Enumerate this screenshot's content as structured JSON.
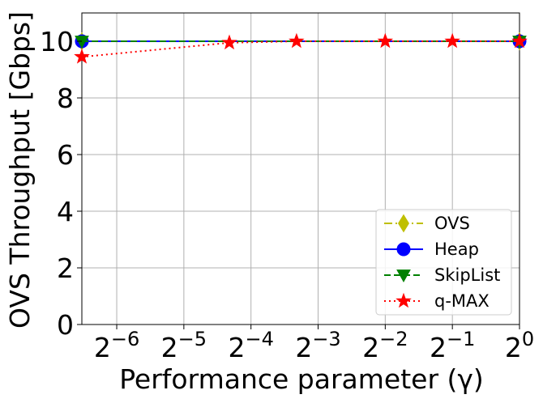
{
  "chart_data": {
    "type": "line",
    "xlabel": "Performance parameter (γ)",
    "ylabel": "OVS Throughput [Gbps]",
    "x_scale": "log2",
    "xlim": [
      0.0109,
      1.0
    ],
    "ylim": [
      0,
      11
    ],
    "x_ticks": [
      {
        "value": 0.015625,
        "base": "2",
        "exp": "−6"
      },
      {
        "value": 0.03125,
        "base": "2",
        "exp": "−5"
      },
      {
        "value": 0.0625,
        "base": "2",
        "exp": "−4"
      },
      {
        "value": 0.125,
        "base": "2",
        "exp": "−3"
      },
      {
        "value": 0.25,
        "base": "2",
        "exp": "−2"
      },
      {
        "value": 0.5,
        "base": "2",
        "exp": "−1"
      },
      {
        "value": 1.0,
        "base": "2",
        "exp": "0"
      }
    ],
    "y_ticks": [
      "0",
      "2",
      "4",
      "6",
      "8",
      "10"
    ],
    "grid": true,
    "legend_position": "bottom-right",
    "series": [
      {
        "name": "OVS",
        "color": "#bfbf00",
        "marker": "diamond",
        "line_style": "dashdot",
        "x": [
          0.0109,
          1.0
        ],
        "y": [
          10.0,
          10.0
        ]
      },
      {
        "name": "Heap",
        "color": "#0000ff",
        "marker": "circle",
        "line_style": "solid",
        "x": [
          0.0109,
          1.0
        ],
        "y": [
          10.0,
          10.0
        ]
      },
      {
        "name": "SkipList",
        "color": "#008000",
        "marker": "triangle-down",
        "line_style": "dashed",
        "x": [
          0.0109,
          1.0
        ],
        "y": [
          10.0,
          10.0
        ]
      },
      {
        "name": "q-MAX",
        "color": "#ff0000",
        "marker": "star",
        "line_style": "dotted",
        "x": [
          0.0109,
          0.05,
          0.1,
          0.25,
          0.5,
          1.0
        ],
        "y": [
          9.45,
          9.95,
          10.0,
          10.0,
          10.0,
          10.0
        ]
      }
    ]
  }
}
